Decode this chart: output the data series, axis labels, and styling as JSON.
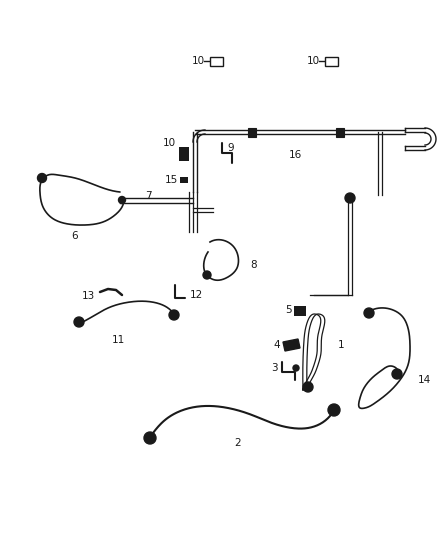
{
  "background_color": "#ffffff",
  "fig_width": 4.38,
  "fig_height": 5.33,
  "dpi": 100,
  "line_color": "#1a1a1a",
  "line_width": 1.4
}
